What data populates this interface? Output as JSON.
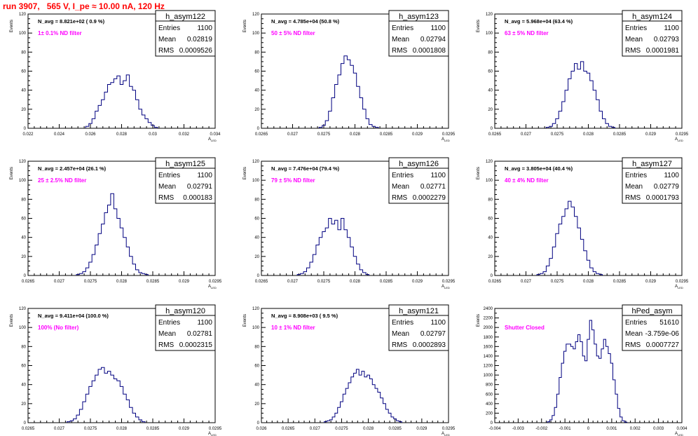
{
  "page": {
    "title": "run 3907,   565 V, I_pe ≈ 10.00 nA, 120 Hz"
  },
  "colors": {
    "histogram": "#000080",
    "annotation": "#ff00ff",
    "title": "#ff0000",
    "frame": "#000000"
  },
  "stats_labels": {
    "entries": "Entries",
    "mean": "Mean",
    "rms": "RMS"
  },
  "axis": {
    "y_title": "Events",
    "x_title": "A",
    "x_title_sub": "LED"
  },
  "chart_data": [
    {
      "type": "bar",
      "name": "h_asym122",
      "header": "N_avg = 8.821e+02 ( 0.9 %)",
      "annotation": "1± 0.1% ND filter",
      "stats": {
        "entries": "1100",
        "mean": "0.02819",
        "rms": "0.0009526"
      },
      "xlim": [
        0.022,
        0.034
      ],
      "xticks": [
        "0.022",
        "0.024",
        "0.026",
        "0.028",
        "0.03",
        "0.032",
        "0.034"
      ],
      "ylim": [
        0,
        120
      ],
      "yticks": [
        "0",
        "20",
        "40",
        "60",
        "80",
        "100",
        "120"
      ],
      "x": [
        0.0258,
        0.026,
        0.0262,
        0.0264,
        0.0266,
        0.0268,
        0.027,
        0.0272,
        0.0274,
        0.0276,
        0.0278,
        0.028,
        0.0282,
        0.0284,
        0.0286,
        0.0288,
        0.029,
        0.0292,
        0.0294,
        0.0296,
        0.0298,
        0.03,
        0.0302
      ],
      "values": [
        2,
        5,
        10,
        18,
        24,
        30,
        38,
        46,
        48,
        52,
        55,
        46,
        50,
        56,
        44,
        40,
        30,
        20,
        14,
        10,
        6,
        3,
        1
      ]
    },
    {
      "type": "bar",
      "name": "h_asym123",
      "header": "N_avg = 4.785e+04 (50.8 %)",
      "annotation": "50 ± 5% ND filter",
      "stats": {
        "entries": "1100",
        "mean": "0.02794",
        "rms": "0.0001808"
      },
      "xlim": [
        0.0265,
        0.0295
      ],
      "xticks": [
        "0.0265",
        "0.027",
        "0.0275",
        "0.028",
        "0.0285",
        "0.029",
        "0.0295"
      ],
      "ylim": [
        0,
        120
      ],
      "yticks": [
        "0",
        "20",
        "40",
        "60",
        "80",
        "100",
        "120"
      ],
      "x": [
        0.02745,
        0.0275,
        0.02755,
        0.0276,
        0.02765,
        0.0277,
        0.02775,
        0.0278,
        0.02785,
        0.0279,
        0.02795,
        0.028,
        0.02805,
        0.0281,
        0.02815,
        0.0282,
        0.02825,
        0.0283,
        0.02835
      ],
      "values": [
        1,
        3,
        8,
        18,
        32,
        46,
        56,
        68,
        76,
        72,
        66,
        58,
        44,
        32,
        20,
        10,
        4,
        2,
        1
      ]
    },
    {
      "type": "bar",
      "name": "h_asym124",
      "header": "N_avg = 5.968e+04 (63.4 %)",
      "annotation": "63 ± 5% ND filter",
      "stats": {
        "entries": "1100",
        "mean": "0.02793",
        "rms": "0.0001981"
      },
      "xlim": [
        0.0265,
        0.0295
      ],
      "xticks": [
        "0.0265",
        "0.027",
        "0.0275",
        "0.028",
        "0.0285",
        "0.029",
        "0.0295"
      ],
      "ylim": [
        0,
        120
      ],
      "yticks": [
        "0",
        "20",
        "40",
        "60",
        "80",
        "100",
        "120"
      ],
      "x": [
        0.02735,
        0.0274,
        0.02745,
        0.0275,
        0.02755,
        0.0276,
        0.02765,
        0.0277,
        0.02775,
        0.0278,
        0.02785,
        0.0279,
        0.02795,
        0.028,
        0.02805,
        0.0281,
        0.02815,
        0.0282,
        0.02825,
        0.0283,
        0.02835,
        0.0284
      ],
      "values": [
        1,
        2,
        5,
        10,
        18,
        28,
        40,
        52,
        60,
        68,
        62,
        70,
        60,
        58,
        50,
        40,
        30,
        18,
        10,
        5,
        2,
        1
      ]
    },
    {
      "type": "bar",
      "name": "h_asym125",
      "header": "N_avg = 2.457e+04 (26.1 %)",
      "annotation": "25 ± 2.5% ND filter",
      "stats": {
        "entries": "1100",
        "mean": "0.02791",
        "rms": "0.000183"
      },
      "xlim": [
        0.0265,
        0.0295
      ],
      "xticks": [
        "0.0265",
        "0.027",
        "0.0275",
        "0.028",
        "0.0285",
        "0.029",
        "0.0295"
      ],
      "ylim": [
        0,
        120
      ],
      "yticks": [
        "0",
        "20",
        "40",
        "60",
        "80",
        "100",
        "120"
      ],
      "x": [
        0.0273,
        0.02735,
        0.0274,
        0.02745,
        0.0275,
        0.02755,
        0.0276,
        0.02765,
        0.0277,
        0.02775,
        0.0278,
        0.02785,
        0.0279,
        0.02795,
        0.028,
        0.02805,
        0.0281,
        0.02815,
        0.0282,
        0.02825,
        0.0283,
        0.02835,
        0.0284
      ],
      "values": [
        1,
        2,
        4,
        8,
        14,
        22,
        32,
        44,
        54,
        66,
        74,
        86,
        70,
        60,
        50,
        40,
        30,
        20,
        12,
        6,
        3,
        2,
        1
      ]
    },
    {
      "type": "bar",
      "name": "h_asym126",
      "header": "N_avg = 7.476e+04 (79.4 %)",
      "annotation": "79 ± 5% ND filter",
      "stats": {
        "entries": "1100",
        "mean": "0.02771",
        "rms": "0.0002279"
      },
      "xlim": [
        0.0265,
        0.0295
      ],
      "xticks": [
        "0.0265",
        "0.027",
        "0.0275",
        "0.028",
        "0.0285",
        "0.029",
        "0.0295"
      ],
      "ylim": [
        0,
        120
      ],
      "yticks": [
        "0",
        "20",
        "40",
        "60",
        "80",
        "100",
        "120"
      ],
      "x": [
        0.0271,
        0.02715,
        0.0272,
        0.02725,
        0.0273,
        0.02735,
        0.0274,
        0.02745,
        0.0275,
        0.02755,
        0.0276,
        0.02765,
        0.0277,
        0.02775,
        0.0278,
        0.02785,
        0.0279,
        0.02795,
        0.028,
        0.02805,
        0.0281,
        0.02815,
        0.0282
      ],
      "values": [
        1,
        2,
        4,
        8,
        14,
        22,
        32,
        40,
        46,
        50,
        60,
        54,
        58,
        48,
        60,
        48,
        40,
        30,
        20,
        12,
        6,
        3,
        1
      ]
    },
    {
      "type": "bar",
      "name": "h_asym127",
      "header": "N_avg = 3.805e+04 (40.4 %)",
      "annotation": "40 ± 4% ND filter",
      "stats": {
        "entries": "1100",
        "mean": "0.02779",
        "rms": "0.0001793"
      },
      "xlim": [
        0.0265,
        0.0295
      ],
      "xticks": [
        "0.0265",
        "0.027",
        "0.0275",
        "0.028",
        "0.0285",
        "0.029",
        "0.0295"
      ],
      "ylim": [
        0,
        120
      ],
      "yticks": [
        "0",
        "20",
        "40",
        "60",
        "80",
        "100",
        "120"
      ],
      "x": [
        0.0272,
        0.02725,
        0.0273,
        0.02735,
        0.0274,
        0.02745,
        0.0275,
        0.02755,
        0.0276,
        0.02765,
        0.0277,
        0.02775,
        0.0278,
        0.02785,
        0.0279,
        0.02795,
        0.028,
        0.02805,
        0.0281,
        0.02815,
        0.0282
      ],
      "values": [
        1,
        2,
        4,
        10,
        18,
        30,
        44,
        54,
        62,
        70,
        78,
        72,
        62,
        50,
        38,
        26,
        16,
        8,
        4,
        2,
        1
      ]
    },
    {
      "type": "bar",
      "name": "h_asym120",
      "header": "N_avg = 9.411e+04 (100.0 %)",
      "annotation": "100% (No filter)",
      "stats": {
        "entries": "1100",
        "mean": "0.02781",
        "rms": "0.0002315"
      },
      "xlim": [
        0.0265,
        0.0295
      ],
      "xticks": [
        "0.0265",
        "0.027",
        "0.0275",
        "0.028",
        "0.0285",
        "0.029",
        "0.0295"
      ],
      "ylim": [
        0,
        120
      ],
      "yticks": [
        "0",
        "20",
        "40",
        "60",
        "80",
        "100",
        "120"
      ],
      "x": [
        0.02715,
        0.0272,
        0.02725,
        0.0273,
        0.02735,
        0.0274,
        0.02745,
        0.0275,
        0.02755,
        0.0276,
        0.02765,
        0.0277,
        0.02775,
        0.0278,
        0.02785,
        0.0279,
        0.02795,
        0.028,
        0.02805,
        0.0281,
        0.02815,
        0.0282,
        0.02825,
        0.0283,
        0.02835
      ],
      "values": [
        1,
        2,
        4,
        8,
        14,
        22,
        30,
        38,
        44,
        50,
        56,
        58,
        52,
        54,
        50,
        46,
        44,
        38,
        30,
        24,
        16,
        10,
        6,
        3,
        1
      ]
    },
    {
      "type": "bar",
      "name": "h_asym121",
      "header": "N_avg = 8.908e+03 ( 9.5 %)",
      "annotation": "10 ± 1% ND filter",
      "stats": {
        "entries": "1100",
        "mean": "0.02797",
        "rms": "0.0002893"
      },
      "xlim": [
        0.026,
        0.0295
      ],
      "xticks": [
        "0.026",
        "0.0265",
        "0.027",
        "0.0275",
        "0.028",
        "0.0285",
        "0.029",
        "0.0295"
      ],
      "ylim": [
        0,
        120
      ],
      "yticks": [
        "0",
        "20",
        "40",
        "60",
        "80",
        "100",
        "120"
      ],
      "x": [
        0.0272,
        0.02725,
        0.0273,
        0.02735,
        0.0274,
        0.02745,
        0.0275,
        0.02755,
        0.0276,
        0.02765,
        0.0277,
        0.02775,
        0.0278,
        0.02785,
        0.0279,
        0.02795,
        0.028,
        0.02805,
        0.0281,
        0.02815,
        0.0282,
        0.02825,
        0.0283,
        0.02835,
        0.0284,
        0.02845,
        0.0285,
        0.02855,
        0.0286
      ],
      "values": [
        1,
        2,
        3,
        6,
        10,
        16,
        22,
        30,
        36,
        42,
        48,
        52,
        56,
        50,
        54,
        48,
        50,
        46,
        40,
        36,
        32,
        26,
        20,
        14,
        10,
        6,
        4,
        2,
        1
      ]
    },
    {
      "type": "bar",
      "name": "hPed_asym",
      "header": "",
      "annotation": "Shutter Closed",
      "stats": {
        "entries": "51610",
        "mean": "-3.759e-06",
        "rms": "0.0007727"
      },
      "xlim": [
        -0.004,
        0.004
      ],
      "xticks": [
        "-0.004",
        "-0.003",
        "-0.002",
        "-0.001",
        "0",
        "0.001",
        "0.002",
        "0.003",
        "0.004"
      ],
      "ylim": [
        0,
        2400
      ],
      "yticks": [
        "0",
        "200",
        "400",
        "600",
        "800",
        "1000",
        "1200",
        "1400",
        "1600",
        "1800",
        "2000",
        "2200",
        "2400"
      ],
      "x": [
        -0.0017,
        -0.0016,
        -0.0015,
        -0.0014,
        -0.0013,
        -0.0012,
        -0.0011,
        -0.001,
        -0.0009,
        -0.0008,
        -0.0007,
        -0.0006,
        -0.0005,
        -0.0004,
        -0.0003,
        -0.0002,
        -0.0001,
        0.0,
        0.0001,
        0.0002,
        0.0003,
        0.0004,
        0.0005,
        0.0006,
        0.0007,
        0.0008,
        0.0009,
        0.001,
        0.0011,
        0.0012,
        0.0013,
        0.0014,
        0.0015,
        0.0016
      ],
      "values": [
        20,
        60,
        150,
        320,
        600,
        950,
        1250,
        1500,
        1650,
        1650,
        1600,
        1550,
        1700,
        1850,
        1700,
        1400,
        1300,
        1750,
        2150,
        1950,
        1650,
        1400,
        1350,
        1550,
        1750,
        1600,
        1450,
        1250,
        900,
        600,
        300,
        120,
        40,
        10
      ]
    }
  ]
}
